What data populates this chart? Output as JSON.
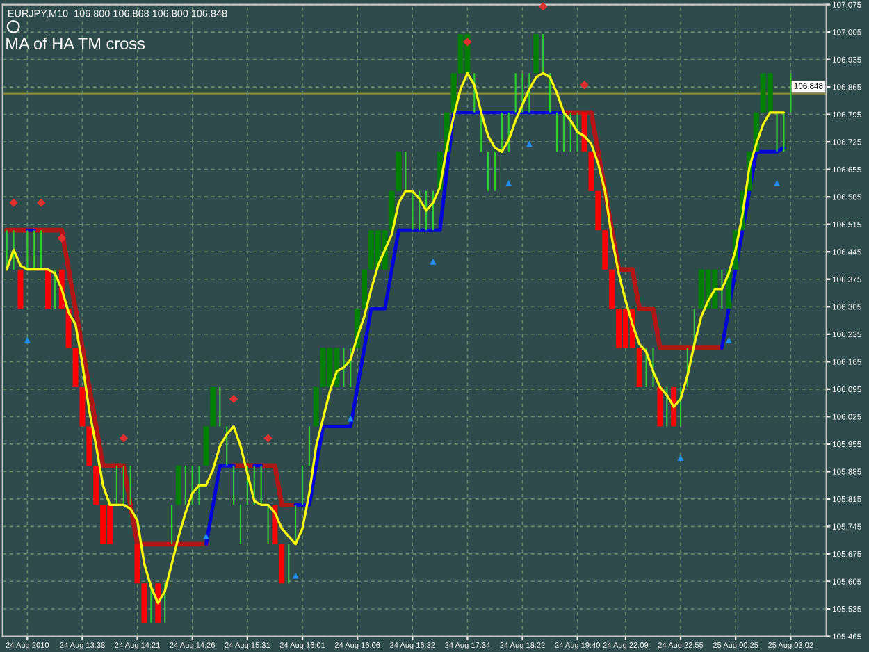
{
  "chart_data": {
    "type": "bar",
    "title": "EURJPY,M10  106.800 106.868 106.800 106.848",
    "subtitle": "MA of HA TM cross",
    "categories": [
      null,
      null,
      null,
      "24 Aug 2010",
      null,
      null,
      null,
      null,
      null,
      null,
      null,
      "24 Aug 13:38",
      null,
      null,
      null,
      null,
      null,
      null,
      null,
      "24 Aug 14:21",
      null,
      null,
      null,
      null,
      null,
      null,
      null,
      "24 Aug 14:26",
      null,
      null,
      null,
      null,
      null,
      null,
      null,
      "24 Aug 15:31",
      null,
      null,
      null,
      null,
      null,
      null,
      null,
      "24 Aug 16:01",
      null,
      null,
      null,
      null,
      null,
      null,
      null,
      "24 Aug 16:06",
      null,
      null,
      null,
      null,
      null,
      null,
      null,
      "24 Aug 16:32",
      null,
      null,
      null,
      null,
      null,
      null,
      null,
      "24 Aug 17:34",
      null,
      null,
      null,
      null,
      null,
      null,
      null,
      "24 Aug 18:22",
      null,
      null,
      null,
      null,
      null,
      null,
      null,
      "24 Aug 19:40",
      null,
      null,
      null,
      null,
      null,
      null,
      "24 Aug 22:09",
      null,
      null,
      null,
      null,
      null,
      null,
      null,
      "24 Aug 22:55",
      null,
      null,
      null,
      null,
      null,
      null,
      null,
      "25 Aug 00:25",
      null,
      null,
      null,
      null,
      null,
      null,
      null,
      "25 Aug 03:02"
    ],
    "series": [
      {
        "color": "#32cd32",
        "base": [
          106.4,
          106.4,
          null,
          106.4,
          106.4,
          106.4,
          null,
          106.3,
          null,
          null,
          null,
          null,
          null,
          null,
          null,
          null,
          105.8,
          105.8,
          105.8,
          null,
          null,
          105.5,
          null,
          105.5,
          105.7,
          null,
          105.8,
          105.8,
          105.8,
          null,
          null,
          106.0,
          105.9,
          105.8,
          105.7,
          105.8,
          105.8,
          105.8,
          105.7,
          null,
          null,
          105.6,
          105.7,
          105.8,
          105.9,
          null,
          null,
          null,
          null,
          106.1,
          106.1,
          null,
          null,
          null,
          null,
          null,
          null,
          null,
          106.6,
          106.5,
          106.5,
          106.5,
          106.5,
          null,
          null,
          null,
          null,
          null,
          106.8,
          106.7,
          106.6,
          106.6,
          106.7,
          106.7,
          106.8,
          106.8,
          106.8,
          null,
          106.9,
          106.8,
          106.7,
          106.7,
          106.7,
          106.7,
          null,
          null,
          null,
          null,
          null,
          null,
          null,
          null,
          null,
          106.1,
          106.1,
          null,
          106.0,
          null,
          106.0,
          106.1,
          106.2,
          null,
          null,
          null,
          106.3,
          null,
          null,
          null,
          null,
          null,
          null,
          null,
          106.7,
          106.7,
          106.8
        ],
        "values": [
          0.1,
          0.1,
          null,
          0.1,
          0.1,
          0.1,
          null,
          0.1,
          null,
          null,
          null,
          null,
          null,
          null,
          null,
          null,
          0.1,
          0.1,
          0.1,
          null,
          null,
          0.1,
          null,
          0.1,
          0.1,
          null,
          0.1,
          0.1,
          0.1,
          null,
          null,
          0.1,
          0.1,
          0.1,
          0.1,
          0.1,
          0.1,
          0.1,
          0.1,
          null,
          null,
          0.1,
          0.1,
          0.1,
          0.1,
          null,
          null,
          null,
          null,
          0.1,
          0.1,
          null,
          null,
          null,
          null,
          null,
          null,
          null,
          0.1,
          0.1,
          0.1,
          0.1,
          0.1,
          null,
          null,
          null,
          null,
          null,
          0.1,
          0.1,
          0.1,
          0.1,
          0.1,
          0.1,
          0.1,
          0.1,
          0.1,
          null,
          0.1,
          0.1,
          0.1,
          0.1,
          0.1,
          0.1,
          null,
          null,
          null,
          null,
          null,
          null,
          null,
          null,
          null,
          0.1,
          0.1,
          null,
          0.1,
          null,
          0.1,
          0.1,
          0.1,
          null,
          null,
          null,
          0.1,
          null,
          null,
          null,
          null,
          null,
          null,
          null,
          0.1,
          0.1,
          0.1
        ]
      },
      {
        "color": "#ff0000",
        "base": [
          null,
          null,
          106.3,
          null,
          null,
          null,
          106.3,
          null,
          106.3,
          106.2,
          106.1,
          106.0,
          105.9,
          105.8,
          105.7,
          105.7,
          null,
          null,
          null,
          105.6,
          105.5,
          null,
          105.5,
          null,
          null,
          null,
          null,
          null,
          null,
          null,
          null,
          null,
          null,
          null,
          null,
          null,
          null,
          null,
          null,
          105.7,
          105.6,
          null,
          null,
          null,
          null,
          null,
          null,
          null,
          null,
          null,
          null,
          null,
          null,
          null,
          null,
          null,
          null,
          null,
          null,
          null,
          null,
          null,
          null,
          null,
          null,
          null,
          null,
          null,
          null,
          null,
          null,
          null,
          null,
          null,
          null,
          null,
          null,
          null,
          null,
          null,
          null,
          null,
          null,
          null,
          106.7,
          106.6,
          106.5,
          106.4,
          106.3,
          106.2,
          106.2,
          106.2,
          106.1,
          null,
          null,
          106.0,
          null,
          106.0,
          null,
          null,
          null,
          null,
          null,
          null,
          null,
          null,
          null,
          null,
          null,
          null,
          null,
          null,
          null,
          null,
          null
        ],
        "values": [
          null,
          null,
          0.1,
          null,
          null,
          null,
          0.1,
          null,
          0.1,
          0.1,
          0.1,
          0.1,
          0.1,
          0.1,
          0.1,
          0.1,
          null,
          null,
          null,
          0.1,
          0.1,
          null,
          0.1,
          null,
          null,
          null,
          null,
          null,
          null,
          null,
          null,
          null,
          null,
          null,
          null,
          null,
          null,
          null,
          null,
          0.1,
          0.1,
          null,
          null,
          null,
          null,
          null,
          null,
          null,
          null,
          null,
          null,
          null,
          null,
          null,
          null,
          null,
          null,
          null,
          null,
          null,
          null,
          null,
          null,
          null,
          null,
          null,
          null,
          null,
          null,
          null,
          null,
          null,
          null,
          null,
          null,
          null,
          null,
          null,
          null,
          null,
          null,
          null,
          null,
          null,
          0.1,
          0.1,
          0.1,
          0.1,
          0.1,
          0.1,
          0.1,
          0.1,
          0.1,
          null,
          null,
          0.1,
          null,
          0.1,
          null,
          null,
          null,
          null,
          null,
          null,
          null,
          null,
          null,
          null,
          null,
          null,
          null,
          null,
          null,
          null,
          null
        ]
      },
      {
        "color": "#008000",
        "base": [
          null,
          null,
          null,
          null,
          null,
          null,
          null,
          null,
          null,
          null,
          null,
          null,
          null,
          null,
          null,
          null,
          null,
          null,
          null,
          null,
          null,
          null,
          null,
          null,
          null,
          105.8,
          null,
          null,
          null,
          105.9,
          106.0,
          null,
          null,
          null,
          null,
          null,
          null,
          null,
          null,
          null,
          null,
          null,
          null,
          null,
          null,
          106.0,
          106.1,
          106.1,
          106.1,
          null,
          null,
          106.2,
          106.3,
          106.4,
          106.4,
          106.4,
          106.5,
          106.6,
          null,
          null,
          null,
          null,
          null,
          106.6,
          106.7,
          106.8,
          106.9,
          106.9,
          null,
          null,
          null,
          null,
          null,
          null,
          null,
          null,
          null,
          106.9,
          null,
          null,
          null,
          null,
          null,
          null,
          null,
          null,
          null,
          null,
          null,
          null,
          null,
          null,
          null,
          null,
          null,
          null,
          null,
          null,
          null,
          null,
          null,
          106.3,
          106.3,
          106.3,
          null,
          106.3,
          106.4,
          106.5,
          106.6,
          106.7,
          106.8,
          106.8,
          null,
          null,
          null
        ],
        "values": [
          null,
          null,
          null,
          null,
          null,
          null,
          null,
          null,
          null,
          null,
          null,
          null,
          null,
          null,
          null,
          null,
          null,
          null,
          null,
          null,
          null,
          null,
          null,
          null,
          null,
          0.1,
          null,
          null,
          null,
          0.1,
          0.1,
          null,
          null,
          null,
          null,
          null,
          null,
          null,
          null,
          null,
          null,
          null,
          null,
          null,
          null,
          0.1,
          0.1,
          0.1,
          0.1,
          null,
          null,
          0.1,
          0.1,
          0.1,
          0.1,
          0.1,
          0.1,
          0.1,
          null,
          null,
          null,
          null,
          null,
          0.1,
          0.1,
          0.1,
          0.1,
          0.1,
          null,
          null,
          null,
          null,
          null,
          null,
          null,
          null,
          null,
          0.1,
          null,
          null,
          null,
          null,
          null,
          null,
          null,
          null,
          null,
          null,
          null,
          null,
          null,
          null,
          null,
          null,
          null,
          null,
          null,
          null,
          null,
          null,
          null,
          0.1,
          0.1,
          0.1,
          null,
          0.1,
          0.1,
          0.1,
          0.1,
          0.1,
          0.1,
          0.1,
          null,
          null,
          null
        ]
      },
      {
        "type": "line",
        "color": "#b01818",
        "values": [
          106.5,
          106.5,
          106.5,
          106.5,
          106.5,
          106.5,
          106.5,
          106.5,
          106.5,
          106.4,
          106.3,
          106.2,
          106.1,
          106.0,
          105.9,
          105.9,
          105.9,
          105.9,
          105.8,
          105.7,
          105.7,
          105.7,
          105.7,
          105.7,
          105.7,
          105.7,
          105.7,
          105.7,
          105.7,
          105.7,
          null,
          null,
          null,
          105.9,
          105.9,
          105.9,
          105.9,
          105.9,
          105.9,
          105.9,
          105.8,
          105.8,
          105.8,
          null,
          null,
          null,
          null,
          null,
          null,
          null,
          null,
          null,
          null,
          null,
          null,
          null,
          null,
          null,
          null,
          null,
          null,
          null,
          null,
          null,
          null,
          null,
          null,
          null,
          null,
          null,
          null,
          null,
          null,
          null,
          null,
          null,
          null,
          null,
          null,
          null,
          null,
          106.8,
          106.8,
          106.8,
          106.8,
          106.8,
          106.7,
          106.6,
          106.5,
          106.4,
          106.4,
          106.4,
          106.3,
          106.3,
          106.3,
          106.2,
          106.2,
          106.2,
          106.2,
          106.2,
          106.2,
          106.2,
          106.2,
          106.2,
          106.2,
          null,
          null,
          null,
          null,
          null,
          null,
          null,
          null,
          null,
          null
        ]
      },
      {
        "type": "line",
        "color": "#0000dd",
        "values": [
          null,
          null,
          null,
          106.5,
          106.5,
          null,
          null,
          null,
          null,
          null,
          null,
          null,
          null,
          null,
          null,
          null,
          null,
          null,
          null,
          null,
          null,
          null,
          null,
          null,
          null,
          null,
          null,
          null,
          null,
          105.7,
          105.8,
          105.9,
          105.9,
          105.9,
          null,
          null,
          105.9,
          105.9,
          null,
          null,
          null,
          null,
          105.8,
          105.8,
          105.8,
          105.9,
          106.0,
          106.0,
          106.0,
          106.0,
          106.0,
          106.1,
          106.2,
          106.3,
          106.3,
          106.3,
          106.4,
          106.5,
          106.5,
          106.5,
          106.5,
          106.5,
          106.5,
          106.5,
          106.65,
          106.8,
          106.8,
          106.8,
          106.8,
          106.8,
          106.8,
          106.8,
          106.8,
          106.8,
          106.8,
          106.8,
          106.8,
          106.8,
          106.8,
          106.8,
          106.8,
          106.8,
          null,
          null,
          null,
          null,
          null,
          null,
          null,
          null,
          null,
          null,
          null,
          null,
          null,
          null,
          null,
          null,
          null,
          null,
          null,
          null,
          null,
          null,
          106.2,
          106.3,
          106.4,
          106.5,
          106.6,
          106.7,
          106.7,
          106.7,
          106.7,
          106.71,
          null
        ]
      },
      {
        "type": "line",
        "color": "#ffff00",
        "values": [
          106.4,
          106.45,
          106.41,
          106.4,
          106.4,
          106.4,
          106.4,
          106.39,
          106.35,
          106.29,
          106.26,
          106.16,
          106.04,
          105.95,
          105.85,
          105.8,
          105.8,
          105.8,
          105.79,
          105.76,
          105.65,
          105.59,
          105.55,
          105.58,
          105.65,
          105.72,
          105.78,
          105.83,
          105.85,
          105.85,
          105.89,
          105.95,
          105.98,
          106.0,
          105.95,
          105.88,
          105.81,
          105.8,
          105.8,
          105.78,
          105.74,
          105.72,
          105.7,
          105.74,
          105.83,
          105.95,
          106.02,
          106.09,
          106.14,
          106.15,
          106.17,
          106.23,
          106.28,
          106.35,
          106.41,
          106.45,
          106.49,
          106.57,
          106.6,
          106.6,
          106.58,
          106.55,
          106.57,
          106.61,
          106.71,
          106.79,
          106.86,
          106.9,
          106.87,
          106.8,
          106.74,
          106.71,
          106.7,
          106.73,
          106.78,
          106.82,
          106.86,
          106.89,
          106.9,
          106.89,
          106.85,
          106.8,
          106.78,
          106.75,
          106.74,
          106.72,
          106.67,
          106.6,
          106.48,
          106.39,
          106.32,
          106.26,
          106.21,
          106.19,
          106.14,
          106.1,
          106.08,
          106.05,
          106.07,
          106.13,
          106.21,
          106.28,
          106.32,
          106.35,
          106.35,
          106.39,
          106.45,
          106.54,
          106.66,
          106.72,
          106.77,
          106.8,
          106.8,
          106.8,
          null
        ]
      },
      {
        "type": "scatter",
        "color": "#1e90ff",
        "marker": "triangle",
        "values": [
          null,
          null,
          null,
          106.22,
          null,
          null,
          null,
          null,
          null,
          null,
          null,
          null,
          null,
          null,
          null,
          null,
          null,
          null,
          null,
          null,
          null,
          null,
          null,
          null,
          null,
          null,
          null,
          null,
          null,
          105.72,
          null,
          null,
          null,
          null,
          null,
          null,
          null,
          null,
          null,
          null,
          null,
          null,
          105.62,
          null,
          null,
          null,
          null,
          null,
          null,
          null,
          106.02,
          null,
          null,
          null,
          null,
          null,
          null,
          null,
          null,
          null,
          null,
          null,
          106.42,
          null,
          null,
          null,
          null,
          null,
          null,
          null,
          null,
          null,
          null,
          106.62,
          null,
          null,
          106.72,
          null,
          null,
          null,
          null,
          null,
          null,
          null,
          null,
          null,
          null,
          null,
          null,
          null,
          null,
          null,
          null,
          null,
          null,
          null,
          null,
          null,
          105.92,
          null,
          null,
          null,
          null,
          null,
          null,
          106.22,
          null,
          null,
          null,
          null,
          null,
          null,
          106.62,
          null,
          null
        ]
      },
      {
        "type": "scatter",
        "color": "#e03030",
        "marker": "diamond",
        "values": [
          null,
          106.57,
          null,
          null,
          null,
          106.57,
          null,
          null,
          106.48,
          null,
          null,
          null,
          null,
          null,
          null,
          null,
          null,
          105.97,
          null,
          null,
          null,
          null,
          null,
          null,
          null,
          null,
          null,
          null,
          null,
          null,
          null,
          null,
          null,
          106.07,
          null,
          null,
          null,
          null,
          105.97,
          null,
          null,
          null,
          null,
          null,
          null,
          null,
          null,
          null,
          null,
          null,
          null,
          null,
          null,
          null,
          null,
          null,
          null,
          null,
          null,
          null,
          null,
          null,
          null,
          null,
          null,
          null,
          null,
          106.98,
          null,
          null,
          null,
          null,
          null,
          null,
          null,
          null,
          null,
          null,
          107.07,
          null,
          null,
          null,
          null,
          null,
          106.87,
          null,
          null,
          null,
          null,
          null,
          null,
          null,
          null,
          null,
          null,
          null,
          null,
          null,
          null,
          null,
          null,
          null,
          null,
          null,
          null,
          null,
          null,
          null,
          null,
          null,
          null,
          null,
          null,
          null,
          null
        ]
      }
    ],
    "ylim": [
      105.465,
      107.075
    ],
    "yticks": [
      105.465,
      105.535,
      105.605,
      105.675,
      105.745,
      105.815,
      105.885,
      105.955,
      106.025,
      106.095,
      106.165,
      106.235,
      106.305,
      106.375,
      106.445,
      106.515,
      106.585,
      106.655,
      106.725,
      106.795,
      106.865,
      106.935,
      107.005,
      107.075
    ],
    "ref_lines": [
      {
        "axis": "y",
        "value": 106.848,
        "label": "106.848",
        "color": "#8a8a3a"
      }
    ],
    "grid": true
  }
}
